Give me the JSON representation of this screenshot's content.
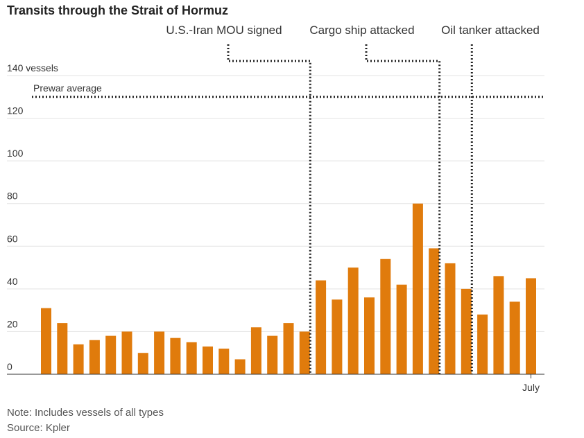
{
  "chart_data": {
    "type": "bar",
    "title": "Transits through the Strait of Hormuz",
    "y_unit_label": "140 vessels",
    "y_ticks": [
      0,
      20,
      40,
      60,
      80,
      100,
      120,
      140
    ],
    "ylim": [
      0,
      140
    ],
    "grid": true,
    "x_tick_labels": [
      {
        "index": 30,
        "label": "July"
      }
    ],
    "values": [
      31,
      24,
      14,
      16,
      18,
      20,
      10,
      20,
      17,
      15,
      13,
      12,
      7,
      22,
      18,
      24,
      20,
      44,
      35,
      50,
      36,
      54,
      42,
      80,
      59,
      52,
      40,
      28,
      46,
      34,
      45
    ],
    "reference_line": {
      "label": "Prewar average",
      "value": 130
    },
    "annotations": [
      {
        "label": "U.S.-Iran MOU signed",
        "at_index": 16
      },
      {
        "label": "Cargo ship attacked",
        "at_index": 24
      },
      {
        "label": "Oil tanker attacked",
        "at_index": 26
      }
    ],
    "colors": {
      "bar": "#e07b0c",
      "grid": "#e3e3e3",
      "axis": "#333333",
      "annotation_line": "#222222"
    },
    "note": "Note: Includes vessels of all types",
    "source": "Source: Kpler"
  }
}
